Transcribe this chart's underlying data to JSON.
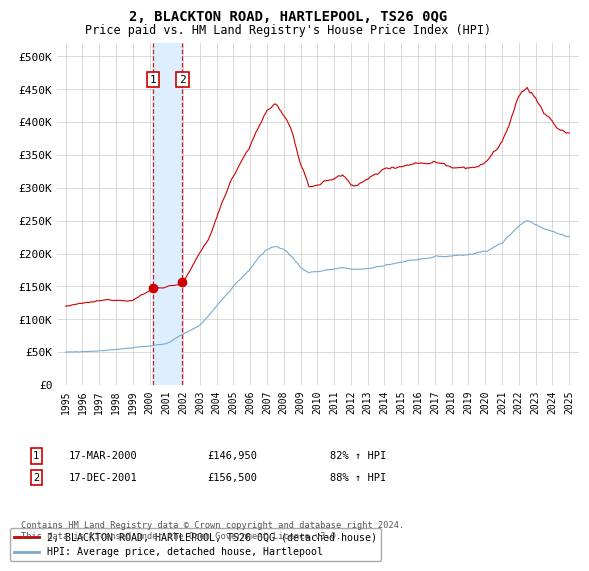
{
  "title": "2, BLACKTON ROAD, HARTLEPOOL, TS26 0QG",
  "subtitle": "Price paid vs. HM Land Registry's House Price Index (HPI)",
  "ylim": [
    0,
    520000
  ],
  "yticks": [
    0,
    50000,
    100000,
    150000,
    200000,
    250000,
    300000,
    350000,
    400000,
    450000,
    500000
  ],
  "ytick_labels": [
    "£0",
    "£50K",
    "£100K",
    "£150K",
    "£200K",
    "£250K",
    "£300K",
    "£350K",
    "£400K",
    "£450K",
    "£500K"
  ],
  "transaction1_date": 2000.21,
  "transaction1_price": 146950,
  "transaction2_date": 2001.96,
  "transaction2_price": 156500,
  "red_line_color": "#cc0000",
  "blue_line_color": "#7aabcf",
  "shade_color": "#ddeeff",
  "grid_color": "#cccccc",
  "legend_label_red": "2, BLACKTON ROAD, HARTLEPOOL, TS26 0QG (detached house)",
  "legend_label_blue": "HPI: Average price, detached house, Hartlepool",
  "transaction1_label": "1",
  "transaction2_label": "2",
  "transaction1_text": "17-MAR-2000",
  "transaction1_amount": "£146,950",
  "transaction1_hpi": "82% ↑ HPI",
  "transaction2_text": "17-DEC-2001",
  "transaction2_amount": "£156,500",
  "transaction2_hpi": "88% ↑ HPI",
  "footnote": "Contains HM Land Registry data © Crown copyright and database right 2024.\nThis data is licensed under the Open Government Licence v3.0."
}
